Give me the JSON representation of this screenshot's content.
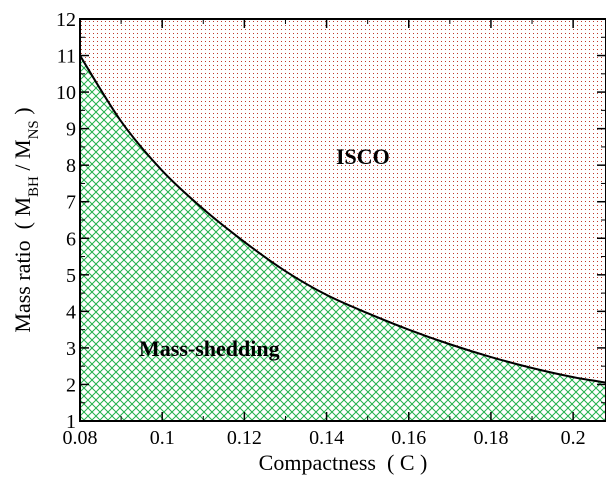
{
  "chart_data": {
    "type": "area",
    "xlabel": "Compactness  ( C )",
    "ylabel": {
      "prefix": "Mass ratio  ( M",
      "sub1": "BH",
      "mid": " / M",
      "sub2": "NS",
      "suffix": " )"
    },
    "xlim": [
      0.08,
      0.208
    ],
    "ylim": [
      1,
      12
    ],
    "x_ticks": [
      0.08,
      0.1,
      0.12,
      0.14,
      0.16,
      0.18,
      0.2
    ],
    "x_tick_labels": [
      "0.08",
      "0.1",
      "0.12",
      "0.14",
      "0.16",
      "0.18",
      "0.2"
    ],
    "y_ticks": [
      1,
      2,
      3,
      4,
      5,
      6,
      7,
      8,
      9,
      10,
      11,
      12
    ],
    "y_tick_labels": [
      "1",
      "2",
      "3",
      "4",
      "5",
      "6",
      "7",
      "8",
      "9",
      "10",
      "11",
      "12"
    ],
    "grid": false,
    "boundary_curve": {
      "x": [
        0.08,
        0.09,
        0.1,
        0.11,
        0.12,
        0.13,
        0.14,
        0.15,
        0.16,
        0.17,
        0.18,
        0.19,
        0.2,
        0.208
      ],
      "y": [
        11.0,
        9.2,
        7.85,
        6.8,
        5.9,
        5.1,
        4.45,
        3.95,
        3.5,
        3.1,
        2.75,
        2.45,
        2.2,
        2.05
      ]
    },
    "regions": [
      {
        "label": "ISCO",
        "position": "above curve",
        "color": "#c0392b",
        "pattern": "dots"
      },
      {
        "label": "Mass-shedding",
        "position": "below curve",
        "color": "#22b14c",
        "pattern": "crosshatch"
      }
    ]
  }
}
